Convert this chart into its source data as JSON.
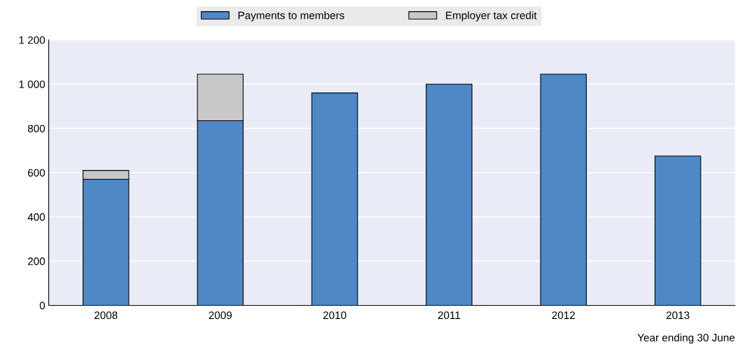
{
  "chart_data": {
    "type": "bar",
    "stacked": true,
    "categories": [
      "2008",
      "2009",
      "2010",
      "2011",
      "2012",
      "2013"
    ],
    "series": [
      {
        "name": "Payments to members",
        "color": "#4e88c7",
        "values": [
          570,
          835,
          960,
          1000,
          1045,
          675
        ]
      },
      {
        "name": "Employer tax credit",
        "color": "#c8c8c8",
        "values": [
          40,
          210,
          null,
          null,
          null,
          null
        ]
      }
    ],
    "ylim": [
      0,
      1200
    ],
    "yticks": [
      0,
      200,
      400,
      600,
      800,
      {
        "value": 1000,
        "label": "1 000"
      },
      {
        "value": 1200,
        "label": "1 200"
      }
    ],
    "grid": "y",
    "legend": "top",
    "annotations": [
      "Year ending 30 June"
    ]
  }
}
